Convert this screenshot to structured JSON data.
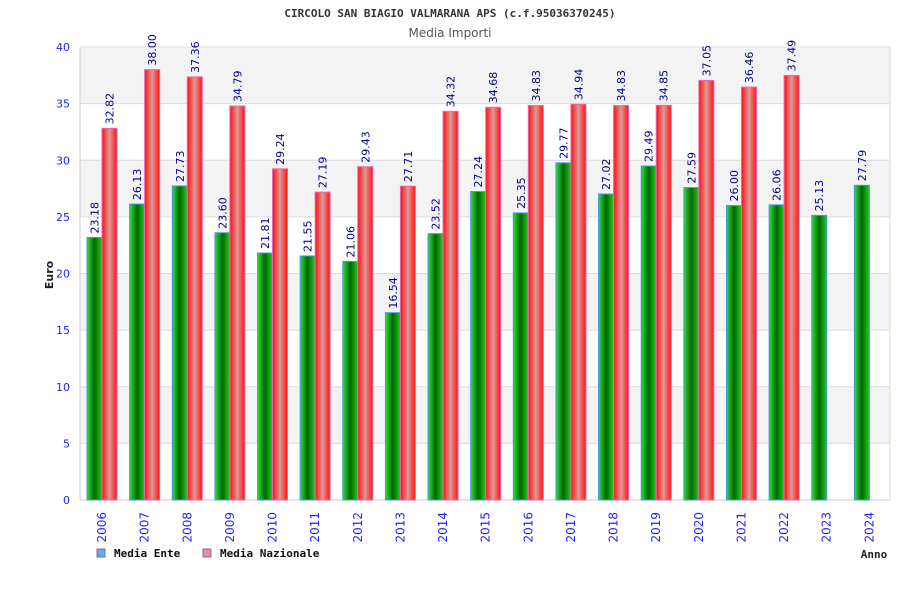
{
  "chart_data": {
    "type": "bar",
    "title": "CIRCOLO SAN BIAGIO VALMARANA APS (c.f.95036370245)",
    "subtitle": "Media Importi",
    "xlabel": "Anno",
    "ylabel": "Euro",
    "ylim": [
      0,
      40
    ],
    "yticks": [
      0,
      5,
      10,
      15,
      20,
      25,
      30,
      35,
      40
    ],
    "grid": true,
    "legend_position": "bottom-left",
    "categories": [
      "2006",
      "2007",
      "2008",
      "2009",
      "2010",
      "2011",
      "2012",
      "2013",
      "2014",
      "2015",
      "2016",
      "2017",
      "2018",
      "2019",
      "2020",
      "2021",
      "2022",
      "2023",
      "2024"
    ],
    "series": [
      {
        "name": "Media Ente",
        "color": "#00aa00",
        "legend_color": "#66aaee",
        "values": [
          23.18,
          26.13,
          27.73,
          23.6,
          21.81,
          21.55,
          21.06,
          16.54,
          23.52,
          27.24,
          25.35,
          29.77,
          27.02,
          29.49,
          27.59,
          26.0,
          26.06,
          25.13,
          27.79
        ],
        "labels": [
          "23.18",
          "26.13",
          "27.73",
          "23.60",
          "21.81",
          "21.55",
          "21.06",
          "16.54",
          "23.52",
          "27.24",
          "25.35",
          "29.77",
          "27.02",
          "29.49",
          "27.59",
          "26.00",
          "26.06",
          "25.13",
          "27.79"
        ]
      },
      {
        "name": "Media Nazionale",
        "color": "#ff0000",
        "legend_color": "#ee88bb",
        "values": [
          32.82,
          38.0,
          37.36,
          34.79,
          29.24,
          27.19,
          29.43,
          27.71,
          34.32,
          34.68,
          34.83,
          34.94,
          34.83,
          34.85,
          37.05,
          36.46,
          37.49,
          null,
          null
        ],
        "labels": [
          "32.82",
          "38.00",
          "37.36",
          "34.79",
          "29.24",
          "27.19",
          "29.43",
          "27.71",
          "34.32",
          "34.68",
          "34.83",
          "34.94",
          "34.83",
          "34.85",
          "37.05",
          "36.46",
          "37.49",
          null,
          null
        ]
      }
    ]
  }
}
